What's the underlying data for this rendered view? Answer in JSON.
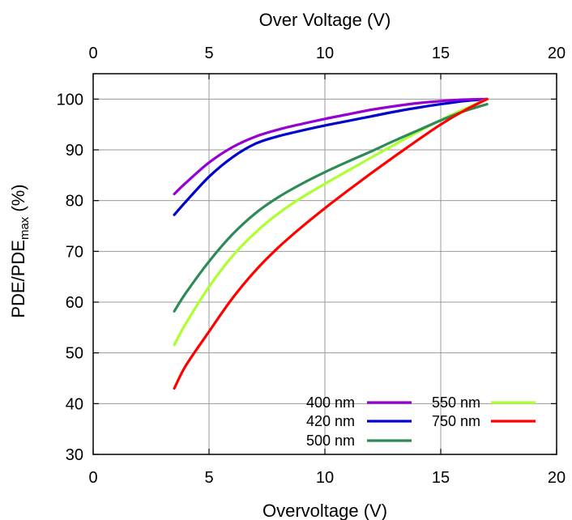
{
  "chart_data": {
    "type": "line",
    "xlabel": "Overvoltage (V)",
    "x2label": "Over Voltage (V)",
    "ylabel_main": "PDE/PDE",
    "ylabel_sub": "max",
    "ylabel_unit": " (%)",
    "xlim": [
      0,
      20
    ],
    "ylim": [
      30,
      105
    ],
    "xticks": [
      0,
      5,
      10,
      15,
      20
    ],
    "yticks": [
      30,
      40,
      50,
      60,
      70,
      80,
      90,
      100
    ],
    "grid": true,
    "legend_position": "bottom-right",
    "series": [
      {
        "name": "400 nm",
        "color": "#9400d3",
        "x": [
          3.5,
          4.0,
          5.0,
          6.0,
          7.0,
          8.0,
          9.0,
          10.0,
          11.0,
          12.0,
          13.0,
          14.0,
          15.0,
          16.0,
          17.0
        ],
        "y": [
          81.3,
          83.5,
          87.5,
          90.5,
          92.6,
          94.0,
          95.1,
          96.1,
          97.0,
          97.9,
          98.6,
          99.2,
          99.6,
          99.9,
          100.0
        ]
      },
      {
        "name": "420 nm",
        "color": "#0000cd",
        "x": [
          3.5,
          4.0,
          5.0,
          6.0,
          7.0,
          8.0,
          9.0,
          10.0,
          11.0,
          12.0,
          13.0,
          14.0,
          15.0,
          16.0,
          17.0
        ],
        "y": [
          77.2,
          79.8,
          84.7,
          88.5,
          91.2,
          92.7,
          93.8,
          94.8,
          95.7,
          96.6,
          97.5,
          98.3,
          99.0,
          99.6,
          100.0
        ]
      },
      {
        "name": "500 nm",
        "color": "#2e8b57",
        "x": [
          3.5,
          4.0,
          5.0,
          6.0,
          7.0,
          8.0,
          9.0,
          10.0,
          11.0,
          12.0,
          13.0,
          14.0,
          15.0,
          16.0,
          17.0
        ],
        "y": [
          58.2,
          61.8,
          68.0,
          73.3,
          77.5,
          80.7,
          83.3,
          85.6,
          87.7,
          89.7,
          91.8,
          93.8,
          95.8,
          97.6,
          99.0
        ]
      },
      {
        "name": "550 nm",
        "color": "#adff2f",
        "x": [
          3.5,
          4.0,
          5.0,
          6.0,
          7.0,
          8.0,
          9.0,
          10.0,
          11.0,
          12.0,
          13.0,
          14.0,
          15.0,
          16.0,
          17.0
        ],
        "y": [
          51.6,
          55.8,
          63.0,
          69.0,
          73.7,
          77.5,
          80.6,
          83.3,
          85.9,
          88.5,
          91.0,
          93.5,
          95.9,
          98.0,
          100.0
        ]
      },
      {
        "name": "750 nm",
        "color": "#ff0000",
        "x": [
          3.5,
          4.0,
          5.0,
          6.0,
          7.0,
          8.0,
          9.0,
          10.0,
          11.0,
          12.0,
          13.0,
          14.0,
          15.0,
          16.0,
          17.0
        ],
        "y": [
          43.0,
          47.5,
          54.2,
          60.7,
          66.2,
          70.8,
          74.8,
          78.5,
          82.0,
          85.4,
          88.7,
          91.9,
          95.0,
          97.7,
          100.0
        ]
      }
    ]
  }
}
